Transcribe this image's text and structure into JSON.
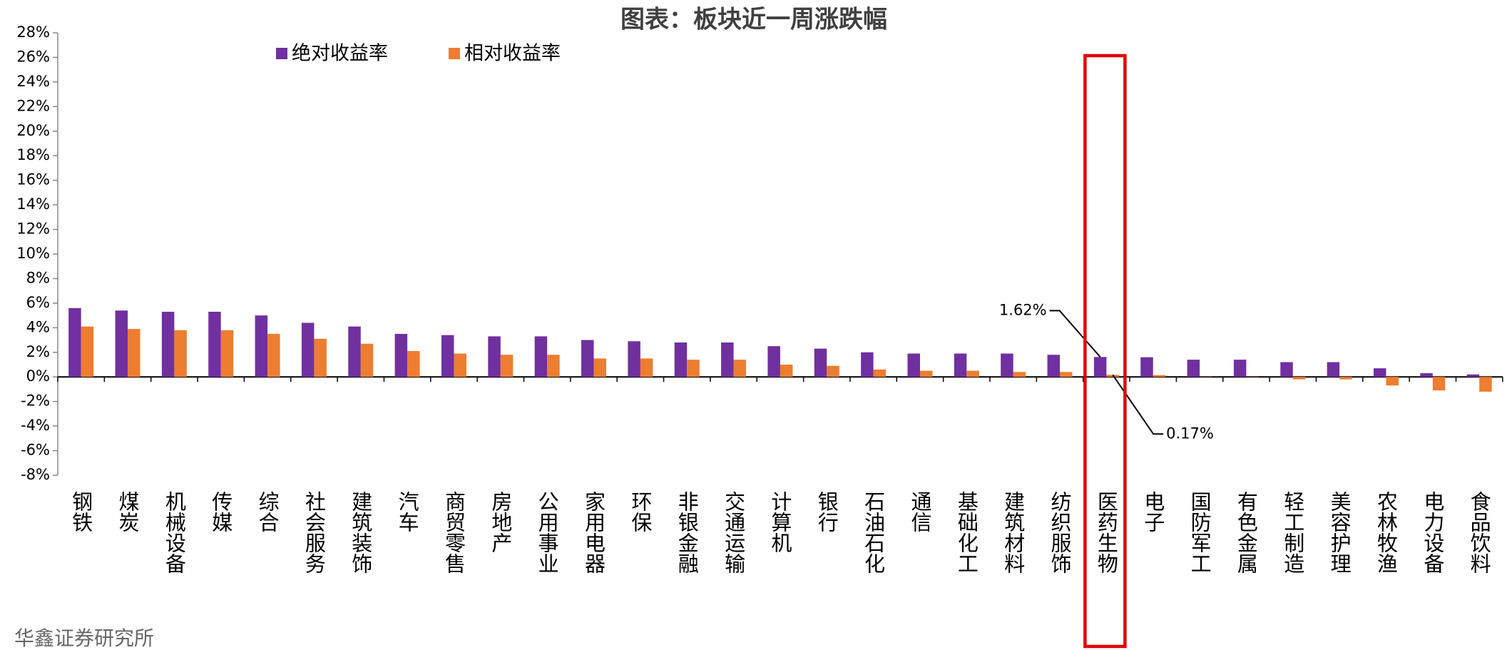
{
  "chart_data": {
    "type": "bar",
    "title": "图表：板块近一周涨跌幅",
    "categories": [
      "钢铁",
      "煤炭",
      "机械设备",
      "传媒",
      "综合",
      "社会服务",
      "建筑装饰",
      "汽车",
      "商贸零售",
      "房地产",
      "公用事业",
      "家用电器",
      "环保",
      "非银金融",
      "交通运输",
      "计算机",
      "银行",
      "石油石化",
      "通信",
      "基础化工",
      "建筑材料",
      "纺织服饰",
      "医药生物",
      "电子",
      "国防军工",
      "有色金属",
      "轻工制造",
      "美容护理",
      "农林牧渔",
      "电力设备",
      "食品饮料"
    ],
    "series": [
      {
        "name": "绝对收益率",
        "color": "#7030a0",
        "values": [
          5.6,
          5.4,
          5.3,
          5.3,
          5.0,
          4.4,
          4.1,
          3.5,
          3.4,
          3.3,
          3.3,
          3.0,
          2.9,
          2.8,
          2.8,
          2.5,
          2.3,
          2.0,
          1.9,
          1.9,
          1.9,
          1.8,
          1.62,
          1.6,
          1.4,
          1.4,
          1.2,
          1.2,
          0.7,
          0.3,
          0.2
        ],
        "value_labels": [
          null,
          null,
          null,
          null,
          null,
          null,
          null,
          null,
          null,
          null,
          null,
          null,
          null,
          null,
          null,
          null,
          null,
          null,
          null,
          null,
          null,
          null,
          "1.62%",
          null,
          null,
          null,
          null,
          null,
          null,
          null,
          null
        ]
      },
      {
        "name": "相对收益率",
        "color": "#ed7d31",
        "values": [
          4.1,
          3.9,
          3.8,
          3.8,
          3.5,
          3.1,
          2.7,
          2.1,
          1.9,
          1.8,
          1.8,
          1.5,
          1.5,
          1.4,
          1.4,
          1.0,
          0.9,
          0.6,
          0.5,
          0.5,
          0.4,
          0.4,
          0.17,
          0.15,
          0.02,
          -0.02,
          -0.2,
          -0.2,
          -0.7,
          -1.1,
          -1.2
        ],
        "value_labels": [
          null,
          null,
          null,
          null,
          null,
          null,
          null,
          null,
          null,
          null,
          null,
          null,
          null,
          null,
          null,
          null,
          null,
          null,
          null,
          null,
          null,
          null,
          "0.17%",
          null,
          null,
          null,
          null,
          null,
          null,
          null,
          null
        ]
      }
    ],
    "ylim": [
      -8,
      28
    ],
    "yticks": [
      {
        "value": -8,
        "label": "-8%"
      },
      {
        "value": -6,
        "label": "-6%"
      },
      {
        "value": -4,
        "label": "-4%"
      },
      {
        "value": -2,
        "label": "-2%"
      },
      {
        "value": 0,
        "label": "0%"
      },
      {
        "value": 2,
        "label": "2%"
      },
      {
        "value": 4,
        "label": "4%"
      },
      {
        "value": 6,
        "label": "6%"
      },
      {
        "value": 8,
        "label": "8%"
      },
      {
        "value": 10,
        "label": "10%"
      },
      {
        "value": 12,
        "label": "12%"
      },
      {
        "value": 14,
        "label": "14%"
      },
      {
        "value": 16,
        "label": "16%"
      },
      {
        "value": 18,
        "label": "18%"
      },
      {
        "value": 20,
        "label": "20%"
      },
      {
        "value": 22,
        "label": "22%"
      },
      {
        "value": 24,
        "label": "24%"
      },
      {
        "value": 26,
        "label": "26%"
      },
      {
        "value": 28,
        "label": "28%"
      }
    ],
    "legend": "top-left",
    "source": "华鑫证券研究所"
  }
}
